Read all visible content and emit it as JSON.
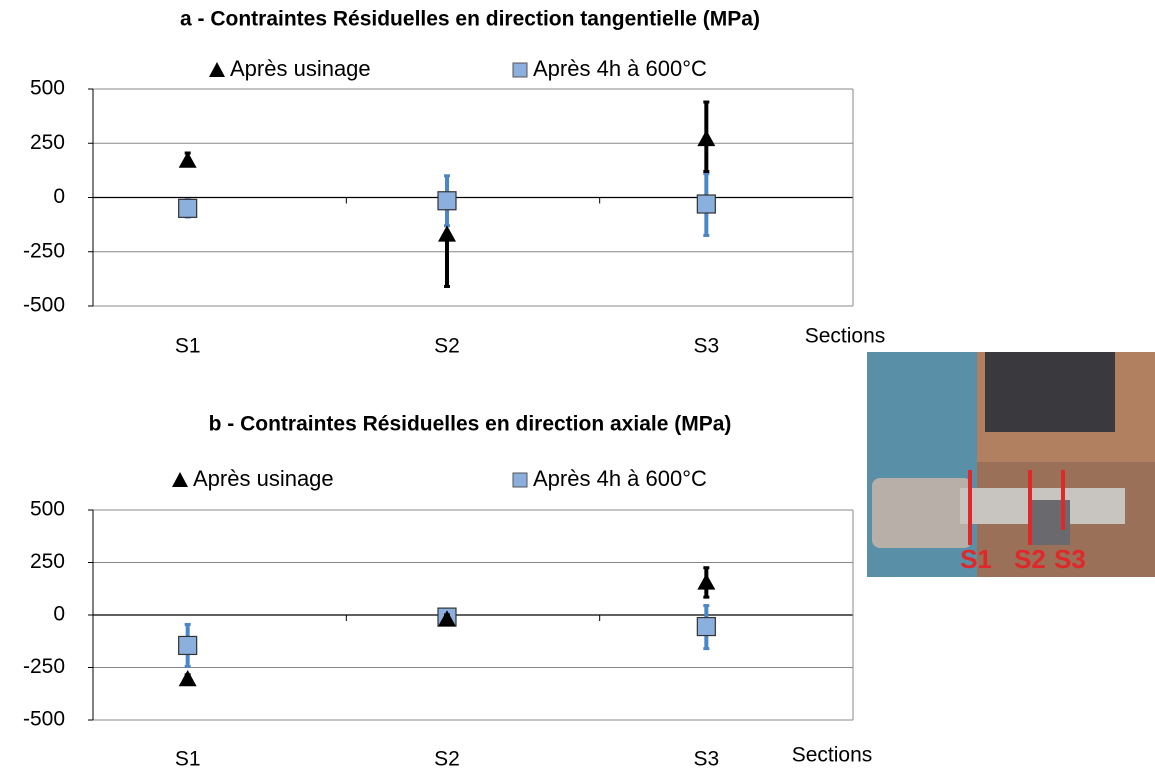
{
  "chart_data": [
    {
      "type": "scatter",
      "title": "a - Contraintes Résiduelles en direction tangentielle (MPa)",
      "x_label": "Sections",
      "categories": [
        "S1",
        "S2",
        "S3"
      ],
      "ylim": [
        -500,
        500
      ],
      "yticks": [
        -500,
        -250,
        0,
        250,
        500
      ],
      "grid": true,
      "legend": "top",
      "series": [
        {
          "name": "Après usinage",
          "color": "#000000",
          "marker": "triangle",
          "values": [
            170,
            -170,
            270
          ],
          "error_low": [
            15,
            240,
            150
          ],
          "error_high": [
            35,
            0,
            170
          ]
        },
        {
          "name": "Après 4h à 600°C",
          "color": "#4a86c8",
          "marker": "square",
          "values": [
            -50,
            -15,
            -30
          ],
          "error_low": [
            40,
            115,
            145
          ],
          "error_high": [
            40,
            115,
            140
          ]
        }
      ]
    },
    {
      "type": "scatter",
      "title": "b - Contraintes Résiduelles en direction axiale (MPa)",
      "x_label": "Sections",
      "categories": [
        "S1",
        "S2",
        "S3"
      ],
      "ylim": [
        -500,
        500
      ],
      "yticks": [
        -500,
        -250,
        0,
        250,
        500
      ],
      "grid": true,
      "legend": "top",
      "series": [
        {
          "name": "Après usinage",
          "color": "#000000",
          "marker": "triangle",
          "values": [
            -305,
            -20,
            155
          ],
          "error_low": [
            20,
            20,
            70
          ],
          "error_high": [
            20,
            20,
            70
          ]
        },
        {
          "name": "Après 4h à 600°C",
          "color": "#4a86c8",
          "marker": "square",
          "values": [
            -145,
            -10,
            -55
          ],
          "error_low": [
            100,
            30,
            105
          ],
          "error_high": [
            100,
            30,
            100
          ]
        }
      ]
    }
  ],
  "photo": {
    "labels": [
      "S1",
      "S2",
      "S3"
    ]
  }
}
